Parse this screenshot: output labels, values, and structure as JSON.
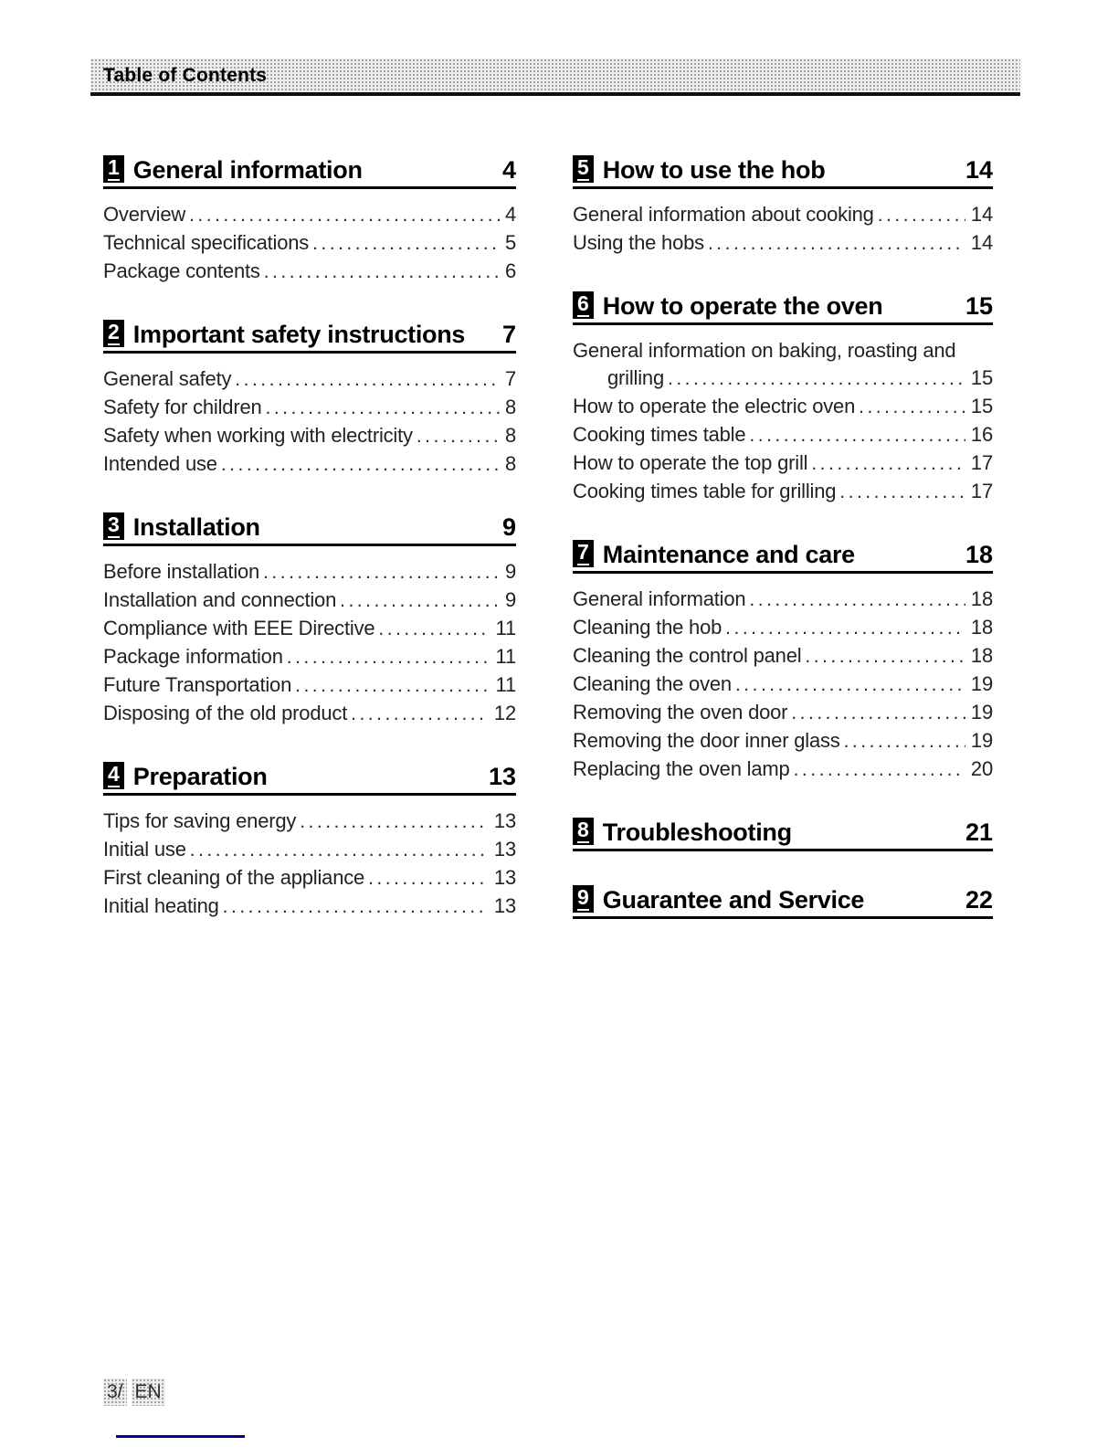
{
  "header": {
    "title": "Table of Contents"
  },
  "footer": {
    "page_label": "3/",
    "lang_label": "EN",
    "rule_color": "#00008b"
  },
  "columns": {
    "left": [
      {
        "num": "1",
        "title": "General information",
        "page": "4",
        "entries": [
          {
            "label": "Overview",
            "page": "4"
          },
          {
            "label": "Technical specifications",
            "page": "5"
          },
          {
            "label": "Package contents",
            "page": "6"
          }
        ]
      },
      {
        "num": "2",
        "title": "Important safety instructions",
        "page": "7",
        "entries": [
          {
            "label": "General safety",
            "page": "7"
          },
          {
            "label": "Safety for children",
            "page": "8"
          },
          {
            "label": "Safety when working with electricity",
            "page": "8"
          },
          {
            "label": "Intended use",
            "page": "8"
          }
        ]
      },
      {
        "num": "3",
        "title": "Installation",
        "page": "9",
        "entries": [
          {
            "label": "Before installation",
            "page": "9"
          },
          {
            "label": "Installation and connection",
            "page": "9"
          },
          {
            "label": "Compliance with EEE Directive",
            "page": "11"
          },
          {
            "label": "Package information",
            "page": "11"
          },
          {
            "label": "Future Transportation",
            "page": "11"
          },
          {
            "label": "Disposing of the old product",
            "page": "12"
          }
        ]
      },
      {
        "num": "4",
        "title": "Preparation",
        "page": "13",
        "entries": [
          {
            "label": "Tips for saving energy",
            "page": "13"
          },
          {
            "label": "Initial use",
            "page": "13"
          },
          {
            "label": "First cleaning of the appliance",
            "page": "13"
          },
          {
            "label": "Initial heating",
            "page": "13"
          }
        ]
      }
    ],
    "right": [
      {
        "num": "5",
        "title": "How to use the hob",
        "page": "14",
        "entries": [
          {
            "label": "General information about cooking",
            "page": "14"
          },
          {
            "label": "Using the hobs",
            "page": "14"
          }
        ]
      },
      {
        "num": "6",
        "title": "How to operate the oven",
        "page": "15",
        "entries": [
          {
            "label": "General information on baking, roasting and",
            "page": null
          },
          {
            "label": "grilling",
            "page": "15",
            "indent": true
          },
          {
            "label": "How to operate the electric oven",
            "page": "15"
          },
          {
            "label": "Cooking times table",
            "page": "16"
          },
          {
            "label": "How to operate the top grill",
            "page": "17"
          },
          {
            "label": "Cooking times table for grilling",
            "page": "17"
          }
        ]
      },
      {
        "num": "7",
        "title": "Maintenance and care",
        "page": "18",
        "entries": [
          {
            "label": "General information",
            "page": "18"
          },
          {
            "label": "Cleaning the hob",
            "page": "18"
          },
          {
            "label": "Cleaning the control panel",
            "page": "18"
          },
          {
            "label": "Cleaning the oven",
            "page": "19"
          },
          {
            "label": "Removing the oven door",
            "page": "19"
          },
          {
            "label": "Removing the door inner glass",
            "page": "19"
          },
          {
            "label": "Replacing the oven lamp",
            "page": "20"
          }
        ]
      },
      {
        "num": "8",
        "title": "Troubleshooting",
        "page": "21",
        "entries": []
      },
      {
        "num": "9",
        "title": "Guarantee and Service",
        "page": "22",
        "entries": []
      }
    ]
  }
}
